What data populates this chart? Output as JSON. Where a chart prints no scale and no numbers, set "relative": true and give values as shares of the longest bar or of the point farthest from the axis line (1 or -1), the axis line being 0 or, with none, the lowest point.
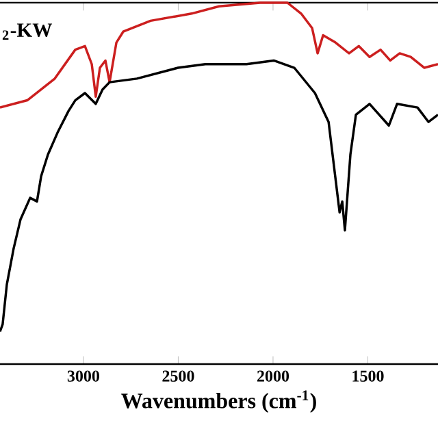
{
  "chart_data": {
    "type": "line",
    "relative": true,
    "xlabel": "Wavenumbers (cm$^{-1}$)",
    "xlim": [
      3440,
      1130
    ],
    "xticks": [
      3000,
      2500,
      2000,
      1500
    ],
    "series": [
      {
        "name": "$_{2}$-KW",
        "color": "#cc1f1f",
        "x": [
          3440,
          3296,
          3151,
          3043,
          2992,
          2956,
          2935,
          2913,
          2884,
          2862,
          2826,
          2790,
          2646,
          2429,
          2285,
          2068,
          1924,
          1852,
          1794,
          1765,
          1736,
          1671,
          1599,
          1548,
          1491,
          1433,
          1382,
          1332,
          1274,
          1202,
          1130
        ],
        "values": [
          0.71,
          0.73,
          0.79,
          0.87,
          0.88,
          0.83,
          0.74,
          0.82,
          0.84,
          0.78,
          0.89,
          0.92,
          0.95,
          0.97,
          0.99,
          1.0,
          1.0,
          0.97,
          0.93,
          0.86,
          0.91,
          0.89,
          0.86,
          0.88,
          0.85,
          0.87,
          0.84,
          0.86,
          0.85,
          0.82,
          0.83
        ]
      },
      {
        "color": "#000000",
        "x": [
          3440,
          3426,
          3404,
          3368,
          3332,
          3281,
          3245,
          3223,
          3187,
          3137,
          3079,
          3043,
          2992,
          2935,
          2899,
          2862,
          2718,
          2501,
          2357,
          2140,
          1996,
          1888,
          1779,
          1707,
          1649,
          1635,
          1621,
          1592,
          1563,
          1491,
          1389,
          1346,
          1238,
          1180,
          1130
        ],
        "values": [
          0.09,
          0.11,
          0.22,
          0.32,
          0.4,
          0.46,
          0.45,
          0.52,
          0.58,
          0.64,
          0.7,
          0.73,
          0.75,
          0.72,
          0.76,
          0.78,
          0.79,
          0.82,
          0.83,
          0.83,
          0.84,
          0.82,
          0.75,
          0.67,
          0.42,
          0.45,
          0.37,
          0.58,
          0.69,
          0.72,
          0.66,
          0.72,
          0.71,
          0.67,
          0.69
        ]
      }
    ]
  }
}
